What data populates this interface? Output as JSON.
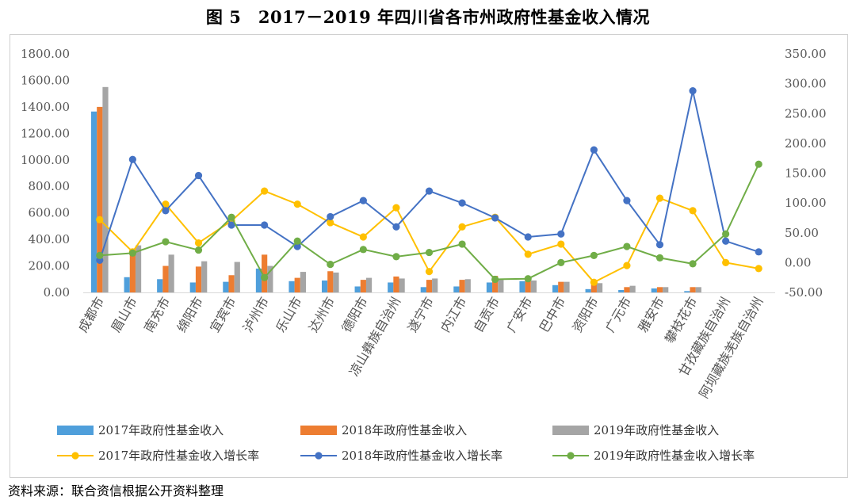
{
  "title": "图 5　2017－2019 年四川省各市州政府性基金收入情况",
  "source": "资料来源：联合资信根据公开资料整理",
  "chart_data": {
    "type": "bar+line",
    "categories": [
      "成都市",
      "眉山市",
      "南充市",
      "绵阳市",
      "宜宾市",
      "泸州市",
      "乐山市",
      "达州市",
      "德阳市",
      "凉山彝族自治州",
      "遂宁市",
      "内江市",
      "自贡市",
      "广安市",
      "巴中市",
      "资阳市",
      "广元市",
      "雅安市",
      "攀枝花市",
      "甘孜藏族自治州",
      "阿坝藏族羌族自治州"
    ],
    "y_left": {
      "min": 0,
      "max": 1800,
      "step": 200,
      "tick_labels": [
        "0.00",
        "200.00",
        "400.00",
        "600.00",
        "800.00",
        "1000.00",
        "1200.00",
        "1400.00",
        "1600.00",
        "1800.00"
      ]
    },
    "y_right": {
      "min": -50,
      "max": 350,
      "step": 50,
      "tick_labels": [
        "-50.00",
        "0.00",
        "50.00",
        "100.00",
        "150.00",
        "200.00",
        "250.00",
        "300.00",
        "350.00"
      ]
    },
    "bar_series": [
      {
        "name": "2017年政府性基金收入",
        "color": "#4f9fdb",
        "values": [
          1365,
          115,
          100,
          75,
          80,
          180,
          85,
          90,
          45,
          75,
          40,
          45,
          75,
          85,
          55,
          25,
          18,
          30,
          10,
          0,
          0
        ]
      },
      {
        "name": "2018年政府性基金收入",
        "color": "#ed7d31",
        "values": [
          1400,
          330,
          200,
          195,
          130,
          285,
          110,
          160,
          95,
          120,
          95,
          95,
          125,
          95,
          80,
          60,
          40,
          40,
          40,
          0,
          0
        ]
      },
      {
        "name": "2019年政府性基金收入",
        "color": "#a5a5a5",
        "values": [
          1550,
          355,
          285,
          235,
          230,
          200,
          155,
          150,
          110,
          105,
          105,
          100,
          95,
          90,
          80,
          70,
          50,
          40,
          40,
          0,
          0
        ]
      }
    ],
    "line_series": [
      {
        "name": "2017年政府性基金收入增长率",
        "color": "#ffc000",
        "values": [
          72,
          18,
          98,
          33,
          70,
          120,
          98,
          67,
          43,
          92,
          -15,
          60,
          76,
          14,
          31,
          -33,
          -5,
          108,
          87,
          0,
          -10
        ]
      },
      {
        "name": "2018年政府性基金收入增长率",
        "color": "#4472c4",
        "values": [
          4,
          173,
          87,
          146,
          63,
          63,
          27,
          77,
          104,
          60,
          120,
          100,
          75,
          43,
          48,
          189,
          104,
          30,
          288,
          36,
          18
        ]
      },
      {
        "name": "2019年政府性基金收入增长率",
        "color": "#70ad47",
        "values": [
          12,
          16,
          35,
          21,
          76,
          -25,
          36,
          -3,
          22,
          10,
          17,
          31,
          -28,
          -27,
          0,
          12,
          27,
          8,
          -2,
          48,
          165
        ]
      }
    ]
  }
}
